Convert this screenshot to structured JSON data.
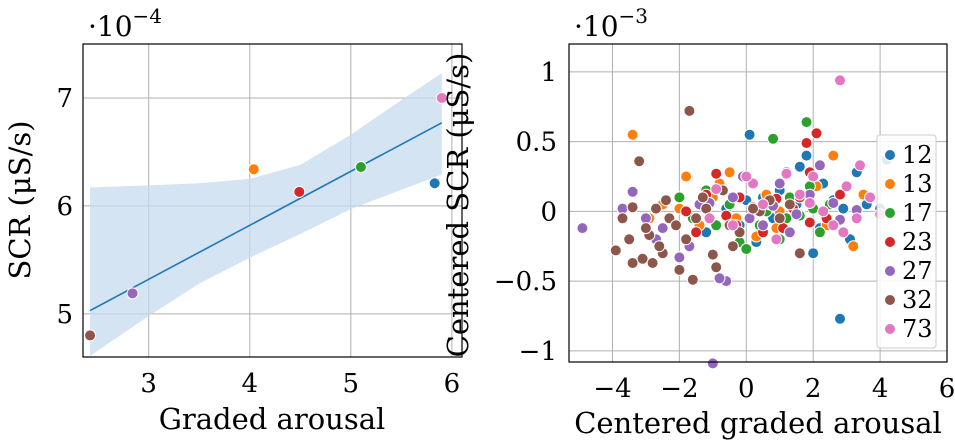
{
  "colors": {
    "12": "#1f77b4",
    "13": "#ff7f0e",
    "17": "#2ca02c",
    "23": "#d62728",
    "27": "#9467bd",
    "32": "#8c564b",
    "73": "#e377c2",
    "fit_line": "#1f77b4",
    "band": "#c6dbef"
  },
  "chart_data": [
    {
      "type": "scatter",
      "xlabel": "Graded arousal",
      "ylabel": "SCR (μS/s)",
      "multiplier": "·10^-4",
      "multiplier_base": "·10",
      "multiplier_exp": "−4",
      "xlim": [
        2.35,
        6.1
      ],
      "ylim": [
        4.6,
        7.5
      ],
      "xticks": [
        3,
        4,
        5,
        6
      ],
      "yticks": [
        5,
        6,
        7
      ],
      "xtick_labels": [
        "3",
        "4",
        "5",
        "6"
      ],
      "ytick_labels": [
        "5",
        "6",
        "7"
      ],
      "grid": true,
      "points": [
        {
          "group": "32",
          "x": 2.42,
          "y": 4.8
        },
        {
          "group": "27",
          "x": 2.84,
          "y": 5.19
        },
        {
          "group": "13",
          "x": 4.04,
          "y": 6.34
        },
        {
          "group": "23",
          "x": 4.49,
          "y": 6.13
        },
        {
          "group": "17",
          "x": 5.1,
          "y": 6.36
        },
        {
          "group": "12",
          "x": 5.83,
          "y": 6.21
        },
        {
          "group": "73",
          "x": 5.9,
          "y": 7.0
        }
      ],
      "regression": {
        "x": [
          2.42,
          5.9
        ],
        "y": [
          5.03,
          6.77
        ]
      },
      "ci_band": {
        "x": [
          2.42,
          3.0,
          3.5,
          4.0,
          4.5,
          5.0,
          5.5,
          5.9
        ],
        "upper": [
          6.17,
          6.19,
          6.21,
          6.25,
          6.38,
          6.66,
          6.98,
          7.23
        ],
        "lower": [
          4.61,
          4.98,
          5.28,
          5.52,
          5.74,
          5.97,
          6.15,
          6.29
        ]
      }
    },
    {
      "type": "scatter",
      "xlabel": "Centered graded arousal",
      "ylabel": "Centered SCR (μS/s)",
      "multiplier": "·10^-3",
      "multiplier_base": "·10",
      "multiplier_exp": "−3",
      "xlim": [
        -5.3,
        6.0
      ],
      "ylim": [
        -1.08,
        1.2
      ],
      "xticks": [
        -4,
        -2,
        0,
        2,
        4,
        6
      ],
      "yticks": [
        -1,
        -0.5,
        0,
        0.5,
        1
      ],
      "xtick_labels": [
        "−4",
        "−2",
        "0",
        "2",
        "4",
        "6"
      ],
      "ytick_labels": [
        "−1",
        "−0.5",
        "0",
        "0.5",
        "1"
      ],
      "grid": true,
      "legend": {
        "position": "right",
        "labels": [
          "12",
          "13",
          "17",
          "23",
          "27",
          "32",
          "73"
        ]
      },
      "series": [
        {
          "name": "12",
          "points": [
            [
              0.1,
              0.55
            ],
            [
              1.8,
              0.4
            ],
            [
              3.1,
              -0.2
            ],
            [
              4.2,
              0.37
            ],
            [
              2.8,
              -0.77
            ],
            [
              0.5,
              0.1
            ],
            [
              -0.2,
              -0.1
            ],
            [
              1.2,
              0.28
            ],
            [
              2.0,
              -0.3
            ],
            [
              1.5,
              0.05
            ],
            [
              2.6,
              0.08
            ],
            [
              3.6,
              0.05
            ],
            [
              -0.6,
              0.02
            ],
            [
              0.8,
              -0.05
            ],
            [
              2.3,
              0.2
            ],
            [
              4.0,
              0.02
            ],
            [
              1.0,
              0.15
            ],
            [
              -1.2,
              -0.15
            ],
            [
              0.3,
              -0.22
            ],
            [
              3.3,
              0.28
            ],
            [
              2.9,
              0.02
            ],
            [
              1.6,
              0.32
            ],
            [
              0.0,
              0.08
            ],
            [
              2.2,
              -0.12
            ]
          ]
        },
        {
          "name": "13",
          "points": [
            [
              -3.4,
              0.55
            ],
            [
              -1.8,
              0.25
            ],
            [
              -0.8,
              0.2
            ],
            [
              0.3,
              -0.18
            ],
            [
              1.0,
              0.0
            ],
            [
              2.6,
              0.4
            ],
            [
              3.2,
              -0.25
            ],
            [
              -2.5,
              0.05
            ],
            [
              -1.4,
              -0.1
            ],
            [
              0.6,
              0.12
            ],
            [
              1.6,
              -0.02
            ],
            [
              2.1,
              0.18
            ],
            [
              -0.3,
              -0.05
            ],
            [
              -2.9,
              -0.05
            ],
            [
              -1.0,
              0.1
            ],
            [
              2.4,
              -0.1
            ],
            [
              1.3,
              0.08
            ],
            [
              -2.0,
              0.02
            ],
            [
              0.9,
              -0.12
            ],
            [
              3.5,
              0.12
            ],
            [
              -0.5,
              0.28
            ]
          ]
        },
        {
          "name": "17",
          "points": [
            [
              1.8,
              0.64
            ],
            [
              0.8,
              0.52
            ],
            [
              1.3,
              0.1
            ],
            [
              -1.2,
              0.15
            ],
            [
              -0.2,
              -0.22
            ],
            [
              1.0,
              -0.2
            ],
            [
              2.0,
              0.02
            ],
            [
              -0.5,
              0.05
            ],
            [
              0.4,
              -0.1
            ],
            [
              1.6,
              -0.03
            ],
            [
              -1.6,
              -0.05
            ],
            [
              2.5,
              0.05
            ],
            [
              0.0,
              -0.27
            ],
            [
              0.6,
              0.0
            ],
            [
              1.9,
              0.18
            ],
            [
              -0.9,
              -0.1
            ],
            [
              2.2,
              -0.15
            ],
            [
              1.2,
              -0.05
            ],
            [
              -2.0,
              0.1
            ]
          ]
        },
        {
          "name": "23",
          "points": [
            [
              1.8,
              0.49
            ],
            [
              2.1,
              0.56
            ],
            [
              1.9,
              0.28
            ],
            [
              -0.9,
              0.27
            ],
            [
              -0.2,
              0.1
            ],
            [
              0.5,
              -0.15
            ],
            [
              1.4,
              0.02
            ],
            [
              -1.5,
              -0.15
            ],
            [
              0.9,
              0.09
            ],
            [
              -0.6,
              -0.03
            ],
            [
              2.4,
              -0.05
            ],
            [
              1.1,
              -0.12
            ],
            [
              0.2,
              0.03
            ],
            [
              -1.2,
              0.12
            ],
            [
              1.6,
              0.1
            ],
            [
              -0.3,
              -0.1
            ],
            [
              0.7,
              0.05
            ],
            [
              1.9,
              -0.08
            ],
            [
              -1.8,
              0.0
            ],
            [
              2.8,
              0.12
            ]
          ]
        },
        {
          "name": "27",
          "points": [
            [
              -4.9,
              -0.12
            ],
            [
              -1.0,
              -1.09
            ],
            [
              -0.6,
              -0.5
            ],
            [
              -3.7,
              0.02
            ],
            [
              -2.7,
              -0.2
            ],
            [
              -1.4,
              0.05
            ],
            [
              0.1,
              -0.05
            ],
            [
              1.3,
              -0.15
            ],
            [
              2.6,
              0.06
            ],
            [
              3.3,
              0.01
            ],
            [
              -0.1,
              0.25
            ],
            [
              1.9,
              0.12
            ],
            [
              -3.4,
              0.14
            ],
            [
              -2.0,
              -0.33
            ],
            [
              -0.8,
              -0.48
            ],
            [
              1.0,
              0.2
            ],
            [
              2.2,
              0.33
            ],
            [
              -2.5,
              -0.12
            ],
            [
              0.5,
              -0.1
            ],
            [
              -1.7,
              -0.25
            ],
            [
              -3.0,
              -0.05
            ],
            [
              -0.4,
              0.1
            ],
            [
              1.5,
              -0.02
            ],
            [
              2.8,
              -0.06
            ],
            [
              -1.1,
              0.06
            ],
            [
              0.8,
              0.04
            ]
          ]
        },
        {
          "name": "32",
          "points": [
            [
              -3.9,
              -0.28
            ],
            [
              -3.4,
              -0.37
            ],
            [
              -3.1,
              -0.34
            ],
            [
              -2.9,
              -0.17
            ],
            [
              -2.7,
              0.02
            ],
            [
              -2.3,
              -0.05
            ],
            [
              -2.0,
              -0.42
            ],
            [
              -1.7,
              0.72
            ],
            [
              -1.5,
              -0.05
            ],
            [
              -1.0,
              -0.31
            ],
            [
              -0.9,
              -0.4
            ],
            [
              -0.5,
              -0.1
            ],
            [
              -3.2,
              0.36
            ],
            [
              -2.5,
              -0.3
            ],
            [
              -1.2,
              0.02
            ],
            [
              -0.2,
              -0.15
            ],
            [
              0.4,
              0.0
            ],
            [
              1.0,
              -0.05
            ],
            [
              1.6,
              -0.3
            ],
            [
              -3.7,
              -0.05
            ],
            [
              -2.8,
              -0.37
            ],
            [
              -1.6,
              -0.49
            ],
            [
              -0.7,
              0.15
            ],
            [
              0.2,
              0.02
            ],
            [
              -3.5,
              -0.2
            ],
            [
              -2.1,
              -0.1
            ],
            [
              -1.3,
              0.1
            ],
            [
              -0.4,
              -0.25
            ],
            [
              -3.0,
              -0.12
            ],
            [
              -2.4,
              0.08
            ],
            [
              -1.8,
              -0.2
            ],
            [
              0.7,
              0.08
            ],
            [
              1.3,
              0.05
            ],
            [
              -3.4,
              0.03
            ],
            [
              -2.6,
              -0.25
            ]
          ]
        },
        {
          "name": "73",
          "points": [
            [
              2.8,
              0.94
            ],
            [
              3.4,
              0.33
            ],
            [
              3.3,
              -0.05
            ],
            [
              2.6,
              -0.1
            ],
            [
              2.0,
              0.25
            ],
            [
              1.2,
              0.27
            ],
            [
              0.5,
              0.05
            ],
            [
              0.2,
              0.2
            ],
            [
              -0.4,
              -0.1
            ],
            [
              1.6,
              0.12
            ],
            [
              2.3,
              0.0
            ],
            [
              3.0,
              0.18
            ],
            [
              4.0,
              -0.02
            ],
            [
              0.9,
              -0.2
            ],
            [
              -0.9,
              0.16
            ],
            [
              1.9,
              0.06
            ],
            [
              2.9,
              -0.15
            ],
            [
              3.7,
              0.1
            ],
            [
              -1.1,
              -0.05
            ],
            [
              0.0,
              0.25
            ]
          ]
        }
      ]
    }
  ]
}
